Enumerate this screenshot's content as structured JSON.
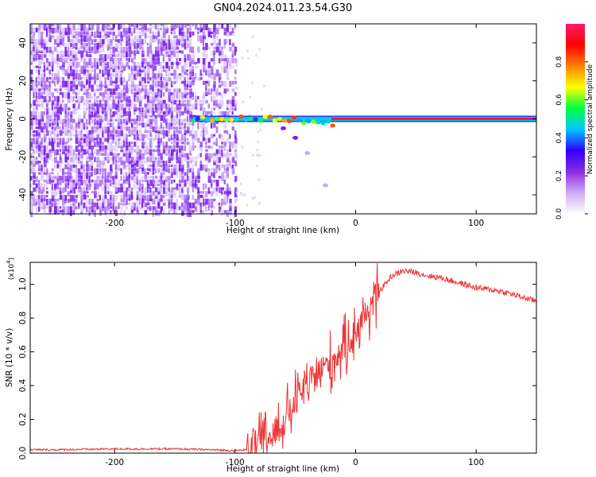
{
  "title": "GN04.2024.011.23.54.G30",
  "colors": {
    "snr_line": "#ee3333",
    "spec_purple": "#7a22ee",
    "spec_light": "#dcc6ff"
  },
  "chart_data": [
    {
      "type": "heatmap",
      "xlabel": "Height of straight line (km)",
      "ylabel": "Frequency (Hz)",
      "xlim": [
        -270,
        150
      ],
      "ylim": [
        -50,
        50
      ],
      "xticks": [
        -200,
        -100,
        0,
        100
      ],
      "yticks": [
        -40,
        -20,
        0,
        20,
        40
      ],
      "colorbar": {
        "label": "Normalized spectral amplitude",
        "range": [
          0.0,
          1.0
        ],
        "ticks": [
          "0.0",
          "0.2",
          "0.4",
          "0.6",
          "0.8"
        ],
        "tick_values": [
          0.0,
          0.2,
          0.4,
          0.6,
          0.8
        ],
        "colormap": [
          "#ffffff",
          "#cfaaf5",
          "#8a2be2",
          "#3000ff",
          "#00c8ff",
          "#00ff40",
          "#ffff00",
          "#ff8000",
          "#ff0000",
          "#ff1a6e"
        ]
      },
      "noise_region": {
        "x_from": -270,
        "x_to": -100,
        "freq_range": [
          -50,
          50
        ]
      },
      "tonal_line": {
        "frequency": 0,
        "x_from": -135,
        "x_to": 150,
        "peak_amplitude": 0.9
      },
      "diverging_branch": {
        "x": [
          -60,
          -50,
          -40,
          -25
        ],
        "frequency": [
          -5,
          -10,
          -18,
          -35
        ]
      }
    },
    {
      "type": "line",
      "xlabel": "Height of straight line (km)",
      "ylabel": "SNR (10 * v/v)",
      "y_multiplier": "(x10",
      "y_multiplier_exp": "4",
      "y_multiplier_close": ")",
      "xlim": [
        -270,
        150
      ],
      "ylim": [
        0.0,
        1.13
      ],
      "xticks": [
        -200,
        -100,
        0,
        100
      ],
      "yticks": [
        "0.0",
        "0.2",
        "0.4",
        "0.6",
        "0.8",
        "1.0"
      ],
      "ytick_values": [
        0.0,
        0.2,
        0.4,
        0.6,
        0.8,
        1.0
      ],
      "series": [
        {
          "x": [
            -270,
            -250,
            -200,
            -150,
            -120,
            -100,
            -90,
            -80,
            -70,
            -60,
            -50,
            -40,
            -30,
            -20,
            -10,
            0,
            10,
            20,
            30,
            40,
            50,
            60,
            70,
            80,
            90,
            100,
            110,
            120,
            130,
            140,
            150
          ],
          "y": [
            0.02,
            0.02,
            0.025,
            0.025,
            0.02,
            0.015,
            0.02,
            0.05,
            0.1,
            0.18,
            0.3,
            0.4,
            0.48,
            0.55,
            0.62,
            0.72,
            0.84,
            0.96,
            1.05,
            1.08,
            1.07,
            1.05,
            1.04,
            1.02,
            1.0,
            0.98,
            0.97,
            0.96,
            0.94,
            0.92,
            0.9
          ]
        }
      ]
    }
  ]
}
